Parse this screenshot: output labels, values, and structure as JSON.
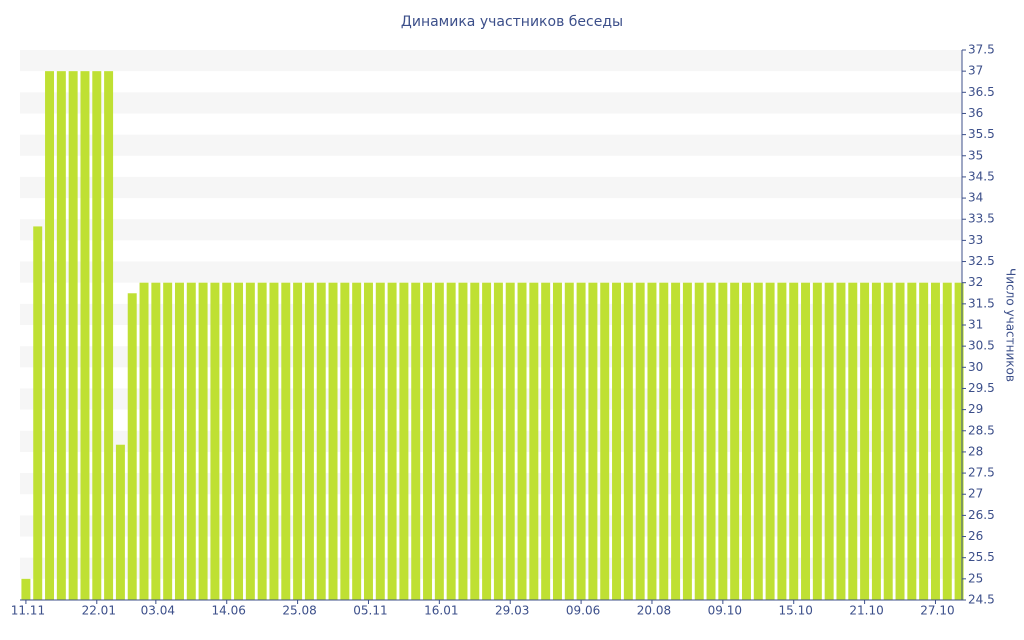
{
  "chart_data": {
    "type": "bar",
    "title": "Динамика участников беседы",
    "y_label": "Число участников",
    "categories": [
      "11.11",
      null,
      null,
      null,
      null,
      null,
      "22.01",
      null,
      null,
      null,
      null,
      "03.04",
      null,
      null,
      null,
      null,
      null,
      "14.06",
      null,
      null,
      null,
      null,
      null,
      "25.08",
      null,
      null,
      null,
      null,
      null,
      "05.11",
      null,
      null,
      null,
      null,
      null,
      "16.01",
      null,
      null,
      null,
      null,
      null,
      "29.03",
      null,
      null,
      null,
      null,
      null,
      "09.06",
      null,
      null,
      null,
      null,
      null,
      "20.08",
      null,
      null,
      null,
      null,
      null,
      "09.10",
      null,
      null,
      null,
      null,
      null,
      "15.10",
      null,
      null,
      null,
      null,
      null,
      "21.10",
      null,
      null,
      null,
      null,
      null,
      "27.10",
      null,
      null
    ],
    "values": [
      25,
      33.33,
      37,
      37,
      37,
      37,
      37,
      37,
      28.17,
      31.75,
      32,
      32,
      32,
      32,
      32,
      32,
      32,
      32,
      32,
      32,
      32,
      32,
      32,
      32,
      32,
      32,
      32,
      32,
      32,
      32,
      32,
      32,
      32,
      32,
      32,
      32,
      32,
      32,
      32,
      32,
      32,
      32,
      32,
      32,
      32,
      32,
      32,
      32,
      32,
      32,
      32,
      32,
      32,
      32,
      32,
      32,
      32,
      32,
      32,
      32,
      32,
      32,
      32,
      32,
      32,
      32,
      32,
      32,
      32,
      32,
      32,
      32,
      32,
      32,
      32,
      32,
      32,
      32,
      32,
      32
    ],
    "color": "#bfe033",
    "ylim": [
      24.5,
      37.5
    ],
    "yticks": [
      24.5,
      25,
      25.5,
      26,
      26.5,
      27,
      27.5,
      28,
      28.5,
      29,
      29.5,
      30,
      30.5,
      31,
      31.5,
      32,
      32.5,
      33,
      33.5,
      34,
      34.5,
      35,
      35.5,
      36,
      36.5,
      37,
      37.5
    ],
    "grid": true,
    "y_axis_side": "right"
  }
}
